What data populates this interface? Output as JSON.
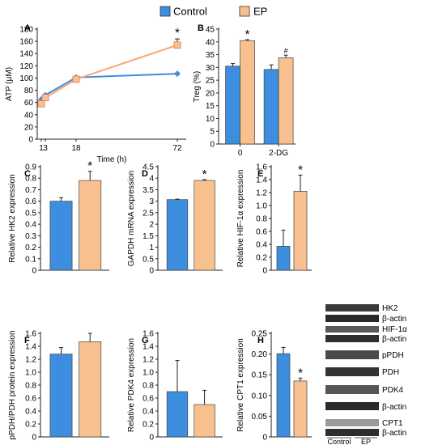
{
  "colors": {
    "control": "#3d8ede",
    "ep": "#f9c08f",
    "ep_line": "#f5a779",
    "axis": "#222222"
  },
  "legend": {
    "control": "Control",
    "ep": "EP"
  },
  "chart_data": [
    {
      "id": "A",
      "type": "line",
      "panel_label": "A",
      "x": [
        1,
        3,
        18,
        72
      ],
      "series": [
        {
          "name": "Control",
          "values": [
            65,
            72,
            101,
            107
          ]
        },
        {
          "name": "EP",
          "values": [
            58,
            68,
            98,
            154
          ],
          "errors": [
            5,
            5,
            3,
            10
          ]
        }
      ],
      "xlabel": "Time (h)",
      "ylabel": "ATP (μM)",
      "ylim": [
        0,
        180
      ],
      "yticks": [
        0,
        20,
        40,
        60,
        80,
        100,
        120,
        140,
        160,
        180
      ],
      "xticks": [
        "1",
        "3",
        "18",
        "72"
      ],
      "annotations": [
        {
          "x": 72,
          "text": "*"
        }
      ]
    },
    {
      "id": "B",
      "type": "bar",
      "panel_label": "B",
      "categories": [
        "0",
        "2-DG"
      ],
      "series": [
        {
          "name": "Control",
          "values": [
            30.5,
            29.2
          ],
          "errors": [
            1.0,
            1.8
          ]
        },
        {
          "name": "EP",
          "values": [
            40.5,
            33.8
          ],
          "errors": [
            0.4,
            1.0
          ]
        }
      ],
      "ylabel": "Treg (%)",
      "ylim": [
        0,
        45
      ],
      "yticks": [
        0,
        5,
        10,
        15,
        20,
        25,
        30,
        35,
        40,
        45
      ],
      "annotations": [
        {
          "category": 0,
          "text": "*"
        },
        {
          "category": 1,
          "text": "#"
        }
      ]
    },
    {
      "id": "C",
      "type": "bar",
      "panel_label": "C",
      "categories": [
        "Control",
        "EP"
      ],
      "values": [
        0.6,
        0.78
      ],
      "errors": [
        0.03,
        0.08
      ],
      "ylabel": "Relative  HK2  expression",
      "ylim": [
        0,
        0.9
      ],
      "yticks": [
        0,
        0.1,
        0.2,
        0.3,
        0.4,
        0.5,
        0.6,
        0.7,
        0.8,
        0.9
      ],
      "yticklabels": [
        "0",
        "0.1",
        "0.2",
        "0.3",
        "0.4",
        "0.5",
        "0.6",
        "0.7",
        "0.8",
        "0.9"
      ],
      "annotations": [
        {
          "bar": 1,
          "text": "*"
        }
      ]
    },
    {
      "id": "D",
      "type": "bar",
      "panel_label": "D",
      "categories": [
        "Control",
        "EP"
      ],
      "values": [
        3.07,
        3.9
      ],
      "errors": [
        0.02,
        0.04
      ],
      "ylabel": "GAPDH mRNA expression",
      "ylim": [
        0,
        4.5
      ],
      "yticks": [
        0,
        0.5,
        1,
        1.5,
        2,
        2.5,
        3,
        3.5,
        4,
        4.5
      ],
      "yticklabels": [
        "0",
        "0.5",
        "1",
        "1.5",
        "2",
        "2.5",
        "3",
        "3.5",
        "4",
        "4.5"
      ],
      "annotations": [
        {
          "bar": 1,
          "text": "*"
        }
      ]
    },
    {
      "id": "E",
      "type": "bar",
      "panel_label": "E",
      "categories": [
        "Control",
        "EP"
      ],
      "values": [
        0.37,
        1.22
      ],
      "errors": [
        0.25,
        0.25
      ],
      "ylabel": "Relative  HIF-1α  expression",
      "ylim": [
        0,
        1.6
      ],
      "yticks": [
        0,
        0.2,
        0.4,
        0.6,
        0.8,
        1.0,
        1.2,
        1.4,
        1.6
      ],
      "yticklabels": [
        "0",
        "0.2",
        "0.4",
        "0.6",
        "0.8",
        "1.0",
        "1.2",
        "1.4",
        "1.6"
      ],
      "annotations": [
        {
          "bar": 1,
          "text": "*"
        }
      ]
    },
    {
      "id": "F",
      "type": "bar",
      "panel_label": "F",
      "categories": [
        "Control",
        "EP"
      ],
      "values": [
        1.28,
        1.47
      ],
      "errors": [
        0.1,
        0.13
      ],
      "ylabel": "pPDH/PDH protein expression",
      "ylim": [
        0,
        1.6
      ],
      "yticks": [
        0,
        0.2,
        0.4,
        0.6,
        0.8,
        1.0,
        1.2,
        1.4,
        1.6
      ],
      "yticklabels": [
        "0",
        "0.2",
        "0.4",
        "0.6",
        "0.8",
        "1.0",
        "1.2",
        "1.4",
        "1.6"
      ],
      "annotations": []
    },
    {
      "id": "G",
      "type": "bar",
      "panel_label": "G",
      "categories": [
        "Control",
        "EP"
      ],
      "values": [
        0.7,
        0.5
      ],
      "errors": [
        0.48,
        0.22
      ],
      "ylabel": "Relative PDK4 expression",
      "ylim": [
        0,
        1.6
      ],
      "yticks": [
        0,
        0.2,
        0.4,
        0.6,
        0.8,
        1.0,
        1.2,
        1.4,
        1.6
      ],
      "yticklabels": [
        "0",
        "0.2",
        "0.4",
        "0.6",
        "0.8",
        "1.0",
        "1.2",
        "1.4",
        "1.6"
      ],
      "annotations": []
    },
    {
      "id": "H",
      "type": "bar",
      "panel_label": "H",
      "categories": [
        "Control",
        "EP"
      ],
      "values": [
        0.201,
        0.135
      ],
      "errors": [
        0.015,
        0.007
      ],
      "ylabel": "Relative CPT1 expression",
      "ylim": [
        0,
        0.25
      ],
      "yticks": [
        0,
        0.05,
        0.1,
        0.15,
        0.2,
        0.25
      ],
      "yticklabels": [
        "0",
        "0.05",
        "0.10",
        "0.15",
        "0.20",
        "0.25"
      ],
      "annotations": [
        {
          "bar": 1,
          "text": "*"
        }
      ]
    }
  ],
  "blot": {
    "rows": [
      "HK2",
      "β-actin",
      "HIF-1α",
      "β-actin",
      "pPDH",
      "PDH",
      "PDK4",
      "β-actin",
      "CPT1",
      "β-actin"
    ],
    "groups": [
      "Control",
      "EP"
    ]
  }
}
